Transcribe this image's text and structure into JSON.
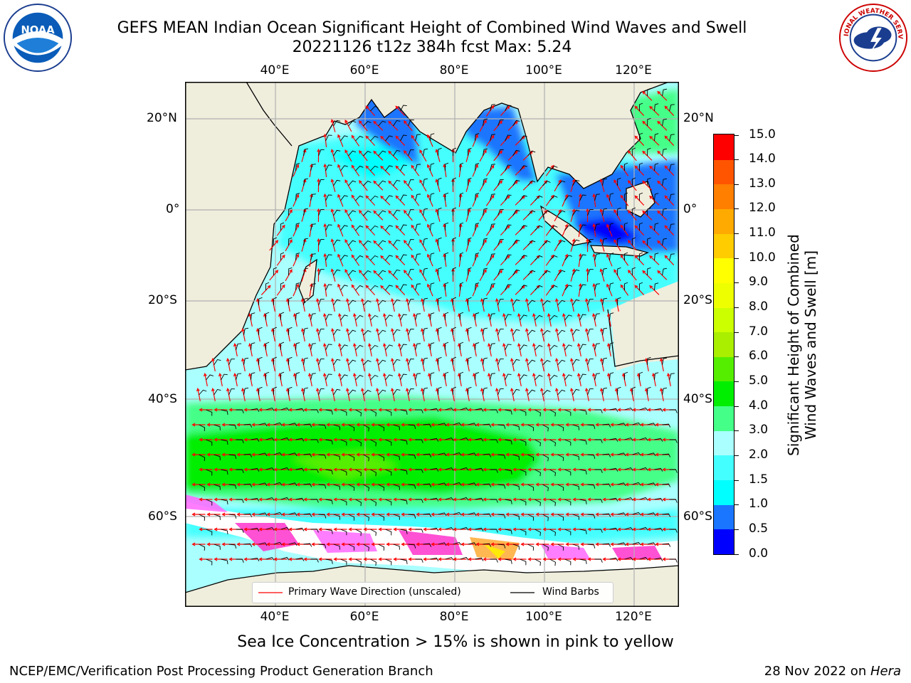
{
  "title_line1": "GEFS MEAN Indian Ocean Significant Height of Combined Wind Waves and Swell",
  "title_line2": "20221126 t12z 384h fcst   Max: 5.24",
  "noaa_logo_text": "NOAA",
  "noaa_logo_ring_text": "NATIONAL OCEANIC AND ATMOSPHERIC ADMINISTRATION · U.S. DEPARTMENT OF COMMERCE",
  "nws_logo_text": "NATIONAL WEATHER SERVICE",
  "map": {
    "lon_range": [
      20,
      130
    ],
    "lat_range": [
      -70,
      25
    ],
    "lon_ticks": [
      {
        "value": 40,
        "label": "40°E"
      },
      {
        "value": 60,
        "label": "60°E"
      },
      {
        "value": 80,
        "label": "80°E"
      },
      {
        "value": 100,
        "label": "100°E"
      },
      {
        "value": 120,
        "label": "120°E"
      }
    ],
    "lat_ticks": [
      {
        "value": 20,
        "label": "20°N"
      },
      {
        "value": 0,
        "label": "0°"
      },
      {
        "value": -20,
        "label": "20°S"
      },
      {
        "value": -40,
        "label": "40°S"
      },
      {
        "value": -60,
        "label": "60°S"
      }
    ],
    "colors": {
      "land": "#efeddc",
      "coast": "#000000",
      "grid": "#b0b0b0",
      "wave_arrow": "#ff0000",
      "wind_barb": "#000000",
      "sea_ice": [
        "#ff33cc",
        "#ff66ff",
        "#ffaa33",
        "#ffee00"
      ]
    },
    "legend": {
      "primary_wave": "Primary Wave Direction (unscaled)",
      "wind_barbs": "Wind Barbs"
    }
  },
  "colorbar": {
    "label_line1": "Significant Height of Combined",
    "label_line2": "Wind Waves and Swell [m]",
    "ticks": [
      "0.0",
      "0.5",
      "1.0",
      "1.5",
      "2.0",
      "3.0",
      "4.0",
      "5.0",
      "6.0",
      "7.0",
      "8.0",
      "9.0",
      "10.0",
      "11.0",
      "12.0",
      "13.0",
      "14.0",
      "15.0"
    ],
    "colors": [
      "#0000ff",
      "#1a75ff",
      "#00ffff",
      "#44ffff",
      "#aaffff",
      "#44ff88",
      "#00ee00",
      "#55ee00",
      "#aaee00",
      "#ccff00",
      "#eeff00",
      "#ffff00",
      "#ffcc00",
      "#ffaa00",
      "#ff7f00",
      "#ff5500",
      "#ff0000"
    ]
  },
  "sub_caption": "Sea Ice Concentration > 15% is shown in pink to yellow",
  "footer": {
    "left": "NCEP/EMC/Verification Post Processing Product Generation Branch",
    "right_prefix": "28 Nov 2022 on ",
    "right_host": "Hera"
  }
}
